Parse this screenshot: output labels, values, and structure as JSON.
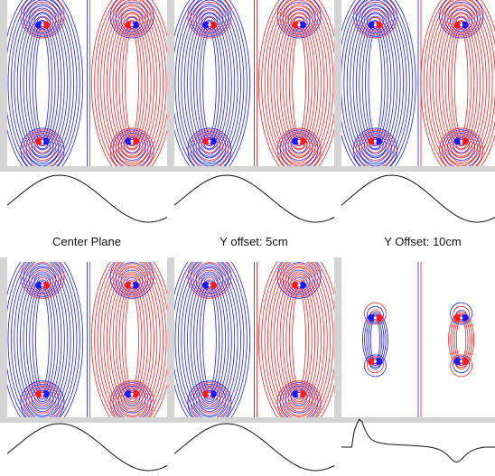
{
  "labels": [
    "Center Plane",
    "Y offset: 5cm",
    "Y Offset: 10cm"
  ]
}
